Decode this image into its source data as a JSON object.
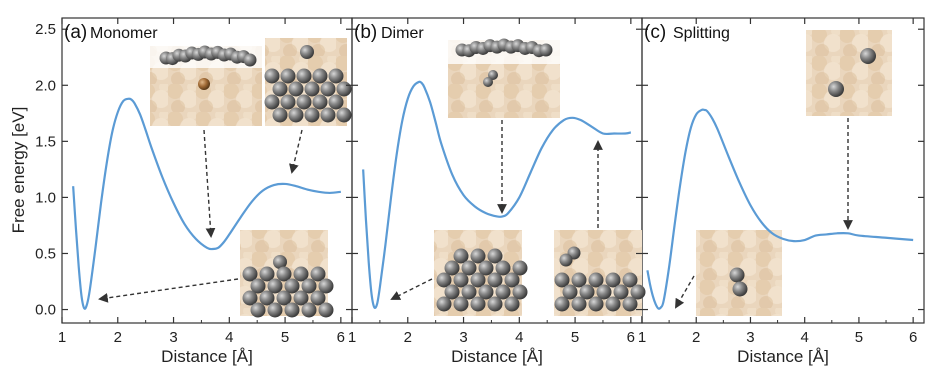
{
  "chart_data": [
    {
      "type": "line",
      "panel_label": "(a)",
      "title": "Monomer",
      "xlabel": "Distance [Å]",
      "ylabel": "Free energy [eV]",
      "xlim": [
        1.0,
        6.2
      ],
      "ylim": [
        -0.12,
        2.6
      ],
      "xticks": [
        "1",
        "2",
        "3",
        "4",
        "5",
        "6"
      ],
      "yticks": [
        "0.0",
        "0.5",
        "1.0",
        "1.5",
        "2.0",
        "2.5"
      ],
      "line_color": "#5b9bd5",
      "series": [
        {
          "x": [
            1.2,
            1.25,
            1.3,
            1.35,
            1.4,
            1.45,
            1.5,
            1.6,
            1.7,
            1.8,
            1.9,
            2.0,
            2.1,
            2.2,
            2.25,
            2.3,
            2.4,
            2.5,
            2.6,
            2.8,
            3.0,
            3.2,
            3.4,
            3.6,
            3.7,
            3.8,
            3.9,
            4.0,
            4.2,
            4.4,
            4.6,
            4.8,
            5.0,
            5.2,
            5.4,
            5.6,
            5.8,
            6.0
          ],
          "y": [
            1.1,
            0.72,
            0.38,
            0.12,
            0.01,
            0.05,
            0.18,
            0.55,
            0.95,
            1.3,
            1.58,
            1.76,
            1.86,
            1.88,
            1.87,
            1.84,
            1.74,
            1.6,
            1.45,
            1.18,
            0.95,
            0.76,
            0.63,
            0.55,
            0.54,
            0.55,
            0.6,
            0.67,
            0.82,
            0.96,
            1.06,
            1.11,
            1.12,
            1.1,
            1.07,
            1.05,
            1.04,
            1.05
          ]
        }
      ],
      "insets": [
        "monomer-cavity-inset",
        "monomer-surface-inset",
        "monomer-bound-inset"
      ]
    },
    {
      "type": "line",
      "panel_label": "(b)",
      "title": "Dimer",
      "xlabel": "Distance [Å]",
      "xlim": [
        1.0,
        6.2
      ],
      "ylim": [
        -0.12,
        2.6
      ],
      "xticks": [
        "1",
        "2",
        "3",
        "4",
        "5",
        "6"
      ],
      "line_color": "#5b9bd5",
      "series": [
        {
          "x": [
            1.2,
            1.25,
            1.3,
            1.35,
            1.4,
            1.45,
            1.5,
            1.6,
            1.7,
            1.8,
            1.9,
            2.0,
            2.1,
            2.2,
            2.25,
            2.3,
            2.4,
            2.5,
            2.6,
            2.8,
            3.0,
            3.2,
            3.4,
            3.6,
            3.7,
            3.8,
            4.0,
            4.2,
            4.4,
            4.6,
            4.8,
            4.95,
            5.1,
            5.3,
            5.5,
            5.7,
            5.9,
            6.0
          ],
          "y": [
            1.25,
            0.8,
            0.42,
            0.14,
            0.02,
            0.05,
            0.2,
            0.58,
            1.0,
            1.38,
            1.68,
            1.88,
            1.99,
            2.03,
            2.02,
            1.98,
            1.85,
            1.67,
            1.48,
            1.2,
            1.02,
            0.92,
            0.86,
            0.83,
            0.83,
            0.86,
            1.0,
            1.22,
            1.44,
            1.6,
            1.69,
            1.71,
            1.69,
            1.63,
            1.57,
            1.57,
            1.57,
            1.58
          ]
        }
      ],
      "insets": [
        "dimer-cavity-inset",
        "dimer-bound-inset",
        "dimer-surface-inset"
      ]
    },
    {
      "type": "line",
      "panel_label": "(c)",
      "title": "Splitting",
      "xlabel": "Distance [Å]",
      "xlim": [
        1.0,
        6.2
      ],
      "ylim": [
        -0.12,
        2.6
      ],
      "xticks": [
        "1",
        "2",
        "3",
        "4",
        "5",
        "6"
      ],
      "line_color": "#5b9bd5",
      "series": [
        {
          "x": [
            1.1,
            1.15,
            1.2,
            1.25,
            1.3,
            1.35,
            1.4,
            1.5,
            1.6,
            1.7,
            1.8,
            1.9,
            2.0,
            2.1,
            2.15,
            2.2,
            2.3,
            2.4,
            2.6,
            2.8,
            3.0,
            3.2,
            3.4,
            3.6,
            3.8,
            4.0,
            4.2,
            4.4,
            4.6,
            4.8,
            5.0,
            5.5,
            6.0
          ],
          "y": [
            0.35,
            0.22,
            0.12,
            0.05,
            0.01,
            0.02,
            0.08,
            0.38,
            0.75,
            1.1,
            1.4,
            1.62,
            1.74,
            1.78,
            1.78,
            1.77,
            1.7,
            1.6,
            1.36,
            1.13,
            0.93,
            0.78,
            0.68,
            0.63,
            0.61,
            0.62,
            0.66,
            0.67,
            0.68,
            0.68,
            0.66,
            0.64,
            0.62
          ]
        }
      ],
      "insets": [
        "split-apart-inset",
        "split-paired-inset"
      ]
    }
  ]
}
